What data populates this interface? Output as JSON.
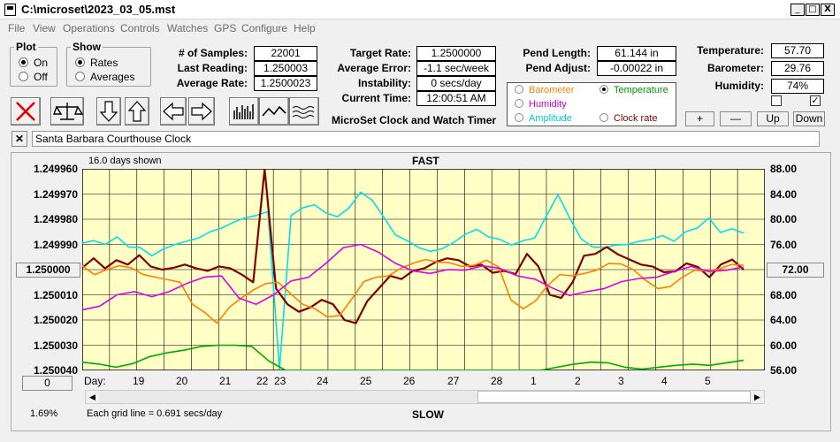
{
  "window": {
    "title": "C:\\microset\\2023_03_05.mst",
    "buttons": [
      "_",
      "□",
      "X"
    ]
  },
  "menu": [
    "File",
    "View",
    "Operations",
    "Controls",
    "Watches",
    "GPS",
    "Configure",
    "Help"
  ],
  "plot_group": {
    "title": "Plot",
    "options": [
      "On",
      "Off"
    ],
    "selected": "On"
  },
  "show_group": {
    "title": "Show",
    "options": [
      "Rates",
      "Averages"
    ],
    "selected": "Rates"
  },
  "stats": {
    "samples_label": "# of Samples:",
    "samples": "22001",
    "last_reading_label": "Last Reading:",
    "last_reading": "1.250003",
    "average_rate_label": "Average Rate:",
    "average_rate": "1.2500023",
    "target_rate_label": "Target Rate:",
    "target_rate": "1.2500000",
    "average_error_label": "Average Error:",
    "average_error": "-1.1 sec/week",
    "instability_label": "Instability:",
    "instability": "0 secs/day",
    "current_time_label": "Current Time:",
    "current_time": "12:00:51 AM",
    "app_name": "MicroSet Clock and Watch Timer",
    "pend_length_label": "Pend Length:",
    "pend_length": "61.144 in",
    "pend_adjust_label": "Pend Adjust:",
    "pend_adjust": "-0.00022 in",
    "temperature_label": "Temperature:",
    "temperature": "57.70",
    "barometer_label": "Barometer:",
    "barometer": "29.76",
    "humidity_label": "Humidity:",
    "humidity": "74%"
  },
  "plot_selector": {
    "options": [
      {
        "label": "Barometer",
        "color": "#ff8000"
      },
      {
        "label": "Temperature",
        "color": "#009900",
        "selected": true
      },
      {
        "label": "Humidity",
        "color": "#cc00cc"
      },
      {
        "label": "Clock rate",
        "color": "#800000"
      },
      {
        "label": "Amplitude",
        "color": "#00cccc"
      }
    ]
  },
  "sensor_buttons": [
    "+",
    "—",
    "Up",
    "Down"
  ],
  "checkboxes": [
    false,
    true
  ],
  "toolbar_icons": [
    "clear-x-icon",
    "balance-scale-icon",
    "arrow-down-icon",
    "arrow-up-icon",
    "arrow-left-icon",
    "arrow-right-icon",
    "bar-graph-icon",
    "line-graph-icon",
    "wave-graph-icon"
  ],
  "clock_name": "Santa Barbara Courthouse Clock",
  "chart_header": {
    "days_shown": "16.0 days shown",
    "fast": "FAST",
    "slow": "SLOW",
    "grid_note": "Each grid line = 0.691 secs/day",
    "zoom": "1.69%",
    "day_label": "Day:",
    "center_left": "1.250000",
    "center_right": "72.00",
    "bottom_left_btn": "0"
  },
  "chart_data": {
    "type": "line",
    "x_ticks": [
      "19",
      "20",
      "21",
      "22",
      "23",
      "24",
      "25",
      "26",
      "27",
      "28",
      "1",
      "2",
      "3",
      "4",
      "5"
    ],
    "y_left_ticks": [
      "1.249960",
      "1.249970",
      "1.249980",
      "1.249990",
      "1.250000",
      "1.250010",
      "1.250020",
      "1.250030",
      "1.250040"
    ],
    "y_right_ticks": [
      "88.00",
      "84.00",
      "80.00",
      "76.00",
      "72.00",
      "68.00",
      "64.00",
      "60.00",
      "56.00"
    ],
    "ylim_left": [
      1.24996,
      1.25004
    ],
    "ylim_right": [
      56,
      88
    ],
    "series": [
      {
        "name": "Amplitude",
        "color": "#00e0e8",
        "values": [
          76.2,
          76.6,
          76.0,
          77.2,
          75.6,
          75.5,
          74.2,
          75.3,
          76.0,
          76.5,
          77.0,
          78.0,
          78.6,
          79.5,
          80.2,
          80.6,
          81.2,
          56.2,
          80.6,
          81.8,
          82.3,
          81.0,
          80.4,
          81.8,
          84.3,
          83.0,
          80.3,
          77.5,
          76.6,
          75.5,
          74.9,
          75.3,
          76.3,
          77.6,
          78.4,
          77.2,
          76.8,
          75.9,
          76.6,
          77.0,
          80.5,
          83.9,
          80.2,
          76.9,
          75.6,
          75.5,
          75.9,
          76.0,
          76.5,
          76.8,
          77.4,
          76.5,
          78.0,
          78.6,
          80.2,
          77.9,
          78.5,
          77.8
        ]
      },
      {
        "name": "Clock rate",
        "color": "#800000",
        "values": [
          72.3,
          73.8,
          72.2,
          73.5,
          72.8,
          74.3,
          72.5,
          72.0,
          72.3,
          72.8,
          72.2,
          71.8,
          72.5,
          72.2,
          71.2,
          70.0,
          88.0,
          69.0,
          66.5,
          65.3,
          66.0,
          67.2,
          66.5,
          64.0,
          63.5,
          67.0,
          69.0,
          71.0,
          70.5,
          71.8,
          72.2,
          73.2,
          73.8,
          73.5,
          72.5,
          72.8,
          71.5,
          71.8,
          71.3,
          74.5,
          72.5,
          68.0,
          67.5,
          70.0,
          74.2,
          74.5,
          75.6,
          74.4,
          73.6,
          72.8,
          72.5,
          71.6,
          71.7,
          73.0,
          72.4,
          70.8,
          72.8,
          73.6,
          72.0
        ]
      },
      {
        "name": "Barometer",
        "color": "#ff8000",
        "values": [
          72.6,
          71.2,
          72.0,
          72.6,
          72.3,
          71.2,
          70.8,
          70.4,
          70.0,
          66.5,
          65.2,
          63.5,
          66.0,
          67.5,
          68.8,
          69.8,
          70.0,
          68.2,
          66.5,
          65.8,
          64.5,
          64.7,
          67.3,
          70.1,
          70.8,
          71.0,
          72.2,
          73.0,
          73.6,
          73.2,
          73.1,
          72.5,
          72.7,
          73.5,
          72.4,
          67.2,
          65.8,
          67.0,
          69.5,
          71.2,
          71.0,
          71.4,
          71.9,
          73.0,
          72.9,
          72.0,
          70.3,
          69.0,
          69.3,
          70.8,
          71.9,
          71.8,
          72.1,
          72.8,
          72.7
        ]
      },
      {
        "name": "Humidity",
        "color": "#e000e0",
        "values": [
          65.6,
          66.2,
          68.0,
          68.5,
          67.7,
          68.5,
          69.8,
          70.8,
          71.0,
          67.5,
          66.5,
          68.0,
          70.2,
          70.8,
          73.0,
          75.5,
          76.0,
          74.8,
          73.0,
          71.8,
          71.4,
          72.0,
          71.9,
          72.6,
          72.2,
          71.0,
          70.5,
          69.1,
          67.9,
          68.5,
          69.0,
          70.1,
          70.6,
          70.8,
          71.7,
          72.5,
          71.7,
          71.9,
          72.4
        ]
      },
      {
        "name": "Temperature",
        "color": "#00aa00",
        "values": [
          57.3,
          57.0,
          56.5,
          57.1,
          58.2,
          58.8,
          59.2,
          59.8,
          60.0,
          60.0,
          59.8,
          57.5,
          56.0,
          56.0,
          56.0,
          56.0,
          56.0,
          56.0,
          56.0,
          56.0,
          56.0,
          56.0,
          56.0,
          56.0,
          56.0,
          56.0,
          56.0,
          56.0,
          56.5,
          57.0,
          57.3,
          57.2,
          56.5,
          56.2,
          56.5,
          56.8,
          57.0,
          56.8,
          57.2,
          57.6
        ]
      }
    ]
  }
}
